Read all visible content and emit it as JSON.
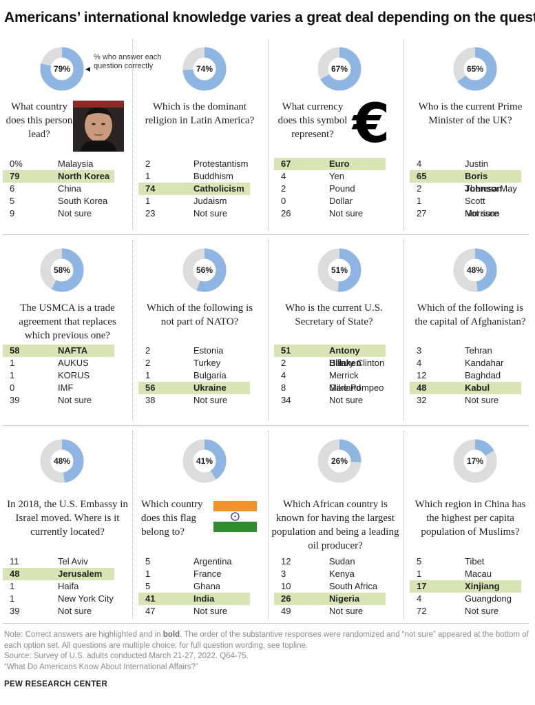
{
  "title": "Americans’ international knowledge varies a great deal depending on the question",
  "legend_note": "% who answer each question correctly",
  "colors": {
    "correct_share": "#8fb5e2",
    "remainder": "#dcdcdc",
    "correct_highlight": "#d9e4b4"
  },
  "chart_data": {
    "type": "table",
    "questions": [
      {
        "percent_correct": 79,
        "percent_label": "79%",
        "question": "What country does this person lead?",
        "answers": [
          {
            "value": "0%",
            "label": "Malaysia",
            "correct": false
          },
          {
            "value": "79",
            "label": "North Korea",
            "correct": true
          },
          {
            "value": "6",
            "label": "China",
            "correct": false
          },
          {
            "value": "5",
            "label": "South Korea",
            "correct": false
          },
          {
            "value": "9",
            "label": "Not sure",
            "correct": false
          }
        ]
      },
      {
        "percent_correct": 74,
        "percent_label": "74%",
        "question": "Which is the dominant religion in Latin America?",
        "answers": [
          {
            "value": "2",
            "label": "Protestantism",
            "correct": false
          },
          {
            "value": "1",
            "label": "Buddhism",
            "correct": false
          },
          {
            "value": "74",
            "label": "Catholicism",
            "correct": true
          },
          {
            "value": "1",
            "label": "Judaism",
            "correct": false
          },
          {
            "value": "23",
            "label": "Not sure",
            "correct": false
          }
        ]
      },
      {
        "percent_correct": 67,
        "percent_label": "67%",
        "question": "What currency does this symbol represent?",
        "answers": [
          {
            "value": "67",
            "label": "Euro",
            "correct": true
          },
          {
            "value": "4",
            "label": "Yen",
            "correct": false
          },
          {
            "value": "2",
            "label": "Pound",
            "correct": false
          },
          {
            "value": "0",
            "label": "Dollar",
            "correct": false
          },
          {
            "value": "26",
            "label": "Not sure",
            "correct": false
          }
        ]
      },
      {
        "percent_correct": 65,
        "percent_label": "65%",
        "question": "Who is the current Prime Minister of the UK?",
        "answers": [
          {
            "value": "4",
            "label": "Justin Trudeau",
            "correct": false
          },
          {
            "value": "65",
            "label": "Boris Johnson",
            "correct": true
          },
          {
            "value": "2",
            "label": "Theresa May",
            "correct": false
          },
          {
            "value": "1",
            "label": "Scott Morrison",
            "correct": false
          },
          {
            "value": "27",
            "label": "Not sure",
            "correct": false
          }
        ]
      },
      {
        "percent_correct": 58,
        "percent_label": "58%",
        "question": "The USMCA is a trade agreement that replaces which previous one?",
        "answers": [
          {
            "value": "58",
            "label": "NAFTA",
            "correct": true
          },
          {
            "value": "1",
            "label": "AUKUS",
            "correct": false
          },
          {
            "value": "1",
            "label": "KORUS",
            "correct": false
          },
          {
            "value": "0",
            "label": "IMF",
            "correct": false
          },
          {
            "value": "39",
            "label": "Not sure",
            "correct": false
          }
        ]
      },
      {
        "percent_correct": 56,
        "percent_label": "56%",
        "question": "Which of the following is not part of NATO?",
        "answers": [
          {
            "value": "2",
            "label": "Estonia",
            "correct": false
          },
          {
            "value": "2",
            "label": "Turkey",
            "correct": false
          },
          {
            "value": "1",
            "label": "Bulgaria",
            "correct": false
          },
          {
            "value": "56",
            "label": "Ukraine",
            "correct": true
          },
          {
            "value": "38",
            "label": "Not sure",
            "correct": false
          }
        ]
      },
      {
        "percent_correct": 51,
        "percent_label": "51%",
        "question": "Who is the current U.S. Secretary of State?",
        "answers": [
          {
            "value": "51",
            "label": "Antony Blinken",
            "correct": true
          },
          {
            "value": "2",
            "label": "Hillary Clinton",
            "correct": false
          },
          {
            "value": "4",
            "label": "Merrick Garland",
            "correct": false
          },
          {
            "value": "8",
            "label": "Mike Pompeo",
            "correct": false
          },
          {
            "value": "34",
            "label": "Not sure",
            "correct": false
          }
        ]
      },
      {
        "percent_correct": 48,
        "percent_label": "48%",
        "question": "Which of the following is the capital of Afghanistan?",
        "answers": [
          {
            "value": "3",
            "label": "Tehran",
            "correct": false
          },
          {
            "value": "4",
            "label": "Kandahar",
            "correct": false
          },
          {
            "value": "12",
            "label": "Baghdad",
            "correct": false
          },
          {
            "value": "48",
            "label": "Kabul",
            "correct": true
          },
          {
            "value": "32",
            "label": "Not sure",
            "correct": false
          }
        ]
      },
      {
        "percent_correct": 48,
        "percent_label": "48%",
        "question": "In 2018, the U.S. Embassy in Israel moved. Where is it currently located?",
        "answers": [
          {
            "value": "11",
            "label": "Tel Aviv",
            "correct": false
          },
          {
            "value": "48",
            "label": "Jerusalem",
            "correct": true
          },
          {
            "value": "1",
            "label": "Haifa",
            "correct": false
          },
          {
            "value": "1",
            "label": "New York City",
            "correct": false
          },
          {
            "value": "39",
            "label": "Not sure",
            "correct": false
          }
        ]
      },
      {
        "percent_correct": 41,
        "percent_label": "41%",
        "question": "Which country does this flag belong to?",
        "answers": [
          {
            "value": "5",
            "label": "Argentina",
            "correct": false
          },
          {
            "value": "1",
            "label": "France",
            "correct": false
          },
          {
            "value": "5",
            "label": "Ghana",
            "correct": false
          },
          {
            "value": "41",
            "label": "India",
            "correct": true
          },
          {
            "value": "47",
            "label": "Not sure",
            "correct": false
          }
        ]
      },
      {
        "percent_correct": 26,
        "percent_label": "26%",
        "question": "Which African country is known for having the largest population and being a leading oil producer?",
        "answers": [
          {
            "value": "12",
            "label": "Sudan",
            "correct": false
          },
          {
            "value": "3",
            "label": "Kenya",
            "correct": false
          },
          {
            "value": "10",
            "label": "South Africa",
            "correct": false
          },
          {
            "value": "26",
            "label": "Nigeria",
            "correct": true
          },
          {
            "value": "49",
            "label": "Not sure",
            "correct": false
          }
        ]
      },
      {
        "percent_correct": 17,
        "percent_label": "17%",
        "question": "Which region in China has the highest per capita population of Muslims?",
        "answers": [
          {
            "value": "5",
            "label": "Tibet",
            "correct": false
          },
          {
            "value": "1",
            "label": "Macau",
            "correct": false
          },
          {
            "value": "17",
            "label": "Xinjiang",
            "correct": true
          },
          {
            "value": "4",
            "label": "Guangdong",
            "correct": false
          },
          {
            "value": "72",
            "label": "Not sure",
            "correct": false
          }
        ]
      }
    ]
  },
  "footnote": {
    "note_prefix": "Note: Correct answers are highlighted and in ",
    "note_bold": "bold",
    "note_rest": ". The order of the substantive responses were randomized and “not sure” appeared at the bottom of each option set. All questions are multiple choice; for full question wording, see topline.",
    "source": "Source: Survey of U.S. adults conducted March 21-27, 2022. Q64-75.",
    "report": "“What Do Americans Know About International Affairs?”"
  },
  "organization": "PEW RESEARCH CENTER"
}
